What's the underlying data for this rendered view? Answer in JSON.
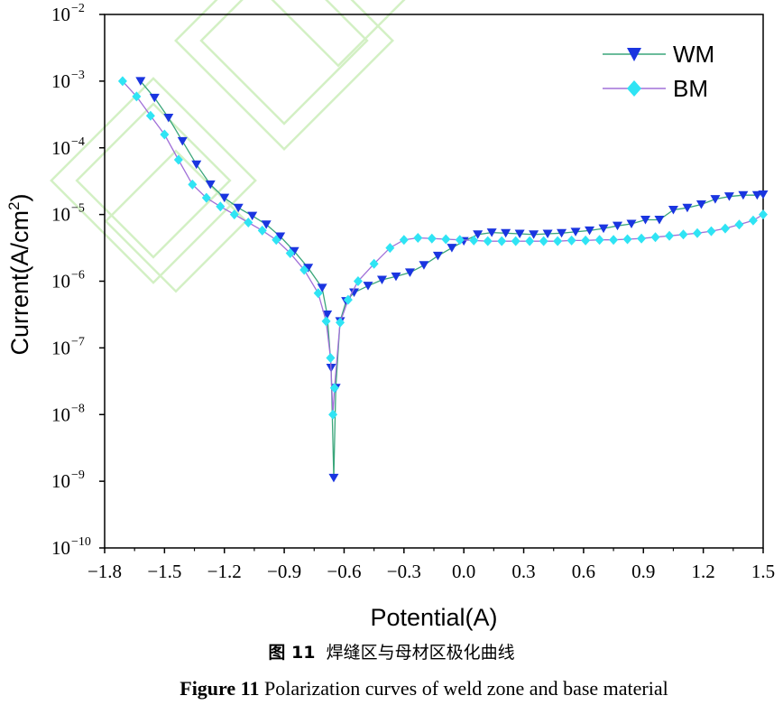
{
  "caption_cn": {
    "label": "图 11",
    "text": "焊缝区与母材区极化曲线"
  },
  "caption_en": {
    "label": "Figure 11",
    "text": "Polarization curves of weld zone and base material"
  },
  "chart_data": {
    "type": "line",
    "title": "",
    "xlabel": "Potential(A)",
    "ylabel": "Current(A/cm2)",
    "ylabel_parts": {
      "main": "Current(A/cm",
      "sup": "2",
      "end": ")"
    },
    "xlim": [
      -1.8,
      1.5
    ],
    "ylim_log10": [
      -10,
      -2
    ],
    "xticks": [
      -1.8,
      -1.5,
      -1.2,
      -0.9,
      -0.6,
      -0.3,
      0.0,
      0.3,
      0.6,
      0.9,
      1.2,
      1.5
    ],
    "xtick_labels": [
      "−1.8",
      "−1.5",
      "−1.2",
      "−0.9",
      "−0.6",
      "−0.3",
      "0.0",
      "0.3",
      "0.6",
      "0.9",
      "1.2",
      "1.5"
    ],
    "yticks_exp": [
      -10,
      -9,
      -8,
      -7,
      -6,
      -5,
      -4,
      -3,
      -2
    ],
    "ytick_labels": [
      {
        "base": "10",
        "exp": "−10"
      },
      {
        "base": "10",
        "exp": "−9"
      },
      {
        "base": "10",
        "exp": "−8"
      },
      {
        "base": "10",
        "exp": "−7"
      },
      {
        "base": "10",
        "exp": "−6"
      },
      {
        "base": "10",
        "exp": "−5"
      },
      {
        "base": "10",
        "exp": "−4"
      },
      {
        "base": "10",
        "exp": "−3"
      },
      {
        "base": "10",
        "exp": "−2"
      }
    ],
    "legend_position": "top-right",
    "series": [
      {
        "name": "WM",
        "line_color": "#3aa67a",
        "marker": "triangle-down",
        "marker_color": "#1a35e0",
        "points": [
          [
            -1.62,
            -3.0
          ],
          [
            -1.55,
            -3.25
          ],
          [
            -1.48,
            -3.55
          ],
          [
            -1.41,
            -3.9
          ],
          [
            -1.34,
            -4.25
          ],
          [
            -1.27,
            -4.55
          ],
          [
            -1.2,
            -4.75
          ],
          [
            -1.13,
            -4.9
          ],
          [
            -1.06,
            -5.02
          ],
          [
            -0.99,
            -5.15
          ],
          [
            -0.92,
            -5.33
          ],
          [
            -0.85,
            -5.55
          ],
          [
            -0.78,
            -5.8
          ],
          [
            -0.71,
            -6.1
          ],
          [
            -0.685,
            -6.5
          ],
          [
            -0.665,
            -7.3
          ],
          [
            -0.652,
            -8.95
          ],
          [
            -0.642,
            -7.6
          ],
          [
            -0.62,
            -6.6
          ],
          [
            -0.59,
            -6.3
          ],
          [
            -0.55,
            -6.17
          ],
          [
            -0.48,
            -6.07
          ],
          [
            -0.41,
            -5.98
          ],
          [
            -0.34,
            -5.93
          ],
          [
            -0.27,
            -5.87
          ],
          [
            -0.2,
            -5.76
          ],
          [
            -0.13,
            -5.62
          ],
          [
            -0.06,
            -5.5
          ],
          [
            0.0,
            -5.4
          ],
          [
            0.07,
            -5.3
          ],
          [
            0.14,
            -5.27
          ],
          [
            0.21,
            -5.28
          ],
          [
            0.28,
            -5.29
          ],
          [
            0.35,
            -5.3
          ],
          [
            0.42,
            -5.29
          ],
          [
            0.49,
            -5.28
          ],
          [
            0.56,
            -5.26
          ],
          [
            0.63,
            -5.24
          ],
          [
            0.7,
            -5.21
          ],
          [
            0.77,
            -5.17
          ],
          [
            0.84,
            -5.14
          ],
          [
            0.91,
            -5.08
          ],
          [
            0.98,
            -5.08
          ],
          [
            1.05,
            -4.93
          ],
          [
            1.12,
            -4.9
          ],
          [
            1.19,
            -4.85
          ],
          [
            1.26,
            -4.77
          ],
          [
            1.33,
            -4.73
          ],
          [
            1.4,
            -4.71
          ],
          [
            1.47,
            -4.71
          ],
          [
            1.5,
            -4.7
          ]
        ]
      },
      {
        "name": "BM",
        "line_color": "#a070d8",
        "marker": "diamond",
        "marker_color": "#2fe4f4",
        "points": [
          [
            -1.71,
            -3.0
          ],
          [
            -1.64,
            -3.23
          ],
          [
            -1.57,
            -3.52
          ],
          [
            -1.5,
            -3.8
          ],
          [
            -1.43,
            -4.18
          ],
          [
            -1.36,
            -4.55
          ],
          [
            -1.29,
            -4.75
          ],
          [
            -1.22,
            -4.88
          ],
          [
            -1.15,
            -5.0
          ],
          [
            -1.08,
            -5.12
          ],
          [
            -1.01,
            -5.24
          ],
          [
            -0.94,
            -5.38
          ],
          [
            -0.87,
            -5.58
          ],
          [
            -0.8,
            -5.83
          ],
          [
            -0.73,
            -6.18
          ],
          [
            -0.69,
            -6.6
          ],
          [
            -0.668,
            -7.15
          ],
          [
            -0.656,
            -8.0
          ],
          [
            -0.648,
            -7.6
          ],
          [
            -0.62,
            -6.62
          ],
          [
            -0.58,
            -6.28
          ],
          [
            -0.53,
            -6.0
          ],
          [
            -0.45,
            -5.74
          ],
          [
            -0.37,
            -5.5
          ],
          [
            -0.3,
            -5.38
          ],
          [
            -0.23,
            -5.35
          ],
          [
            -0.16,
            -5.36
          ],
          [
            -0.09,
            -5.37
          ],
          [
            -0.02,
            -5.38
          ],
          [
            0.05,
            -5.39
          ],
          [
            0.12,
            -5.4
          ],
          [
            0.19,
            -5.4
          ],
          [
            0.26,
            -5.4
          ],
          [
            0.33,
            -5.4
          ],
          [
            0.4,
            -5.4
          ],
          [
            0.47,
            -5.4
          ],
          [
            0.54,
            -5.39
          ],
          [
            0.61,
            -5.39
          ],
          [
            0.68,
            -5.38
          ],
          [
            0.75,
            -5.38
          ],
          [
            0.82,
            -5.37
          ],
          [
            0.89,
            -5.36
          ],
          [
            0.96,
            -5.34
          ],
          [
            1.03,
            -5.32
          ],
          [
            1.1,
            -5.3
          ],
          [
            1.17,
            -5.28
          ],
          [
            1.24,
            -5.25
          ],
          [
            1.31,
            -5.21
          ],
          [
            1.38,
            -5.15
          ],
          [
            1.45,
            -5.09
          ],
          [
            1.5,
            -5.0
          ]
        ]
      }
    ]
  }
}
